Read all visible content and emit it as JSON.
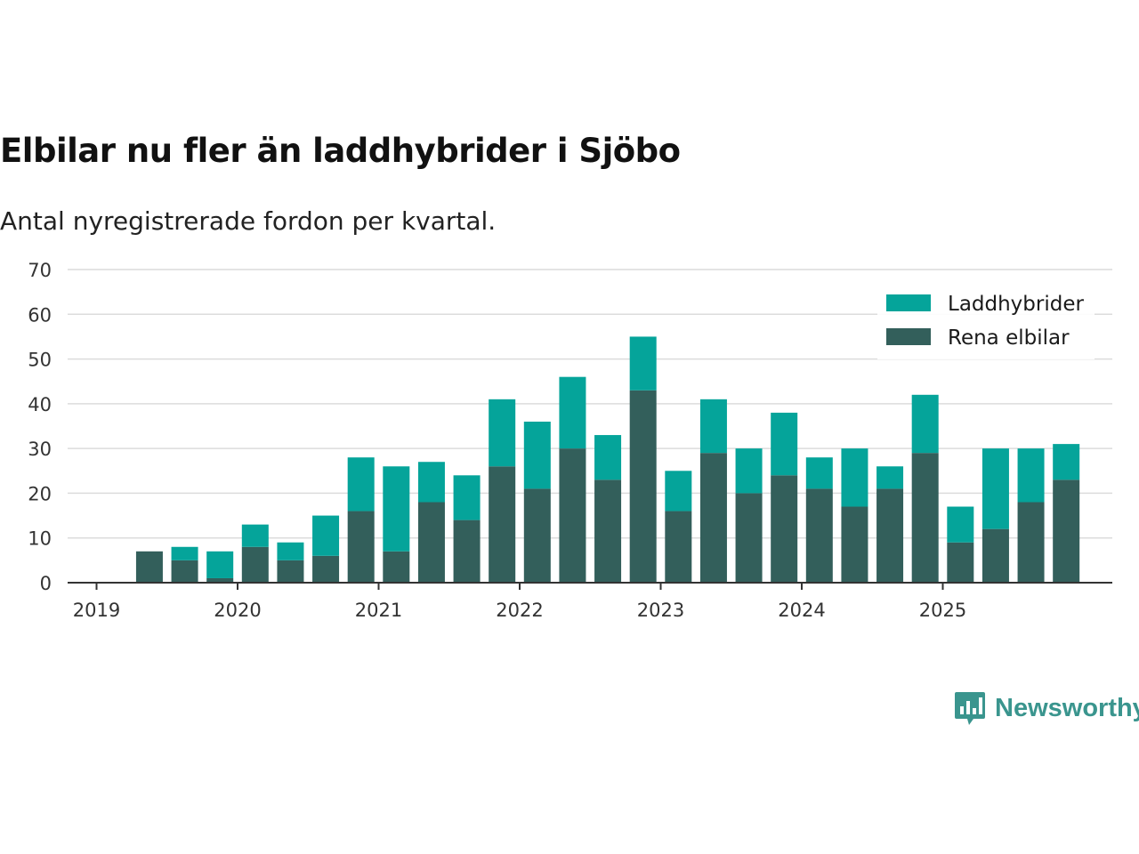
{
  "chart_data": {
    "type": "bar",
    "stacked": true,
    "title": "Elbilar nu fler än laddhybrider i Sjöbo",
    "subtitle": "Antal nyregistrerade fordon per kvartal.",
    "xlabel": "",
    "ylabel": "",
    "ylim": [
      0,
      70
    ],
    "yticks": [
      0,
      10,
      20,
      30,
      40,
      50,
      60,
      70
    ],
    "x_tick_labels": [
      "2019",
      "2020",
      "2021",
      "2022",
      "2023",
      "2024",
      "2025"
    ],
    "categories": [
      "2019 Q2",
      "2019 Q3",
      "2019 Q4",
      "2020 Q1",
      "2020 Q2",
      "2020 Q3",
      "2020 Q4",
      "2021 Q1",
      "2021 Q2",
      "2021 Q3",
      "2021 Q4",
      "2022 Q1",
      "2022 Q2",
      "2022 Q3",
      "2022 Q4",
      "2023 Q1",
      "2023 Q2",
      "2023 Q3",
      "2023 Q4",
      "2024 Q1",
      "2024 Q2",
      "2024 Q3",
      "2024 Q4",
      "2025 Q1",
      "2025 Q2",
      "2025 Q3",
      "2025 Q4"
    ],
    "series": [
      {
        "name": "Rena elbilar",
        "color": "#335f5b",
        "values": [
          7,
          5,
          1,
          8,
          5,
          6,
          16,
          7,
          18,
          14,
          26,
          21,
          30,
          23,
          43,
          16,
          29,
          20,
          24,
          21,
          17,
          21,
          29,
          9,
          12,
          18,
          23
        ]
      },
      {
        "name": "Laddhybrider",
        "color": "#05a49a",
        "values": [
          0,
          3,
          6,
          5,
          4,
          9,
          12,
          19,
          9,
          10,
          15,
          15,
          16,
          10,
          12,
          9,
          12,
          10,
          14,
          7,
          13,
          5,
          13,
          8,
          18,
          12,
          8
        ]
      }
    ],
    "legend": {
      "position": "top-right",
      "entries": [
        "Laddhybrider",
        "Rena elbilar"
      ]
    },
    "grid": true
  },
  "brand": {
    "name": "Newsworthy",
    "color": "#3a958e"
  }
}
